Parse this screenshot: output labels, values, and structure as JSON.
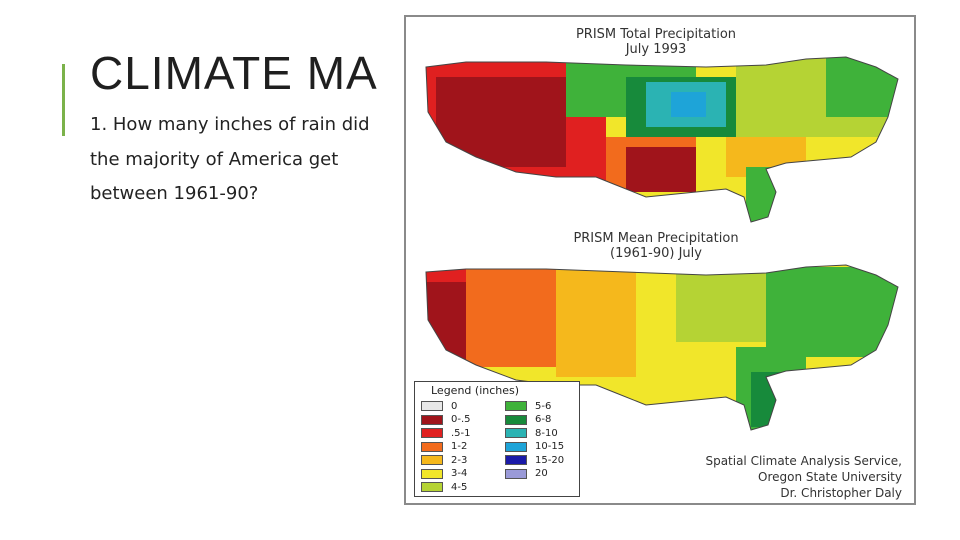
{
  "slide": {
    "title": "CLIMATE MA",
    "question": "1. How many inches of rain did the majority of America get between 1961-90?"
  },
  "maps": [
    {
      "title_line1": "PRISM Total Precipitation",
      "title_line2": "July 1993"
    },
    {
      "title_line1": "PRISM Mean Precipitation",
      "title_line2": "(1961-90) July"
    }
  ],
  "legend": {
    "title": "Legend (inches)",
    "items": [
      {
        "label": "0",
        "color": "#e8e8e8"
      },
      {
        "label": "0-.5",
        "color": "#a0141b"
      },
      {
        "label": ".5-1",
        "color": "#e02020"
      },
      {
        "label": "1-2",
        "color": "#f26b1d"
      },
      {
        "label": "2-3",
        "color": "#f5b81c"
      },
      {
        "label": "3-4",
        "color": "#f1e62a"
      },
      {
        "label": "4-5",
        "color": "#b5d334"
      },
      {
        "label": "5-6",
        "color": "#3fb23a"
      },
      {
        "label": "6-8",
        "color": "#178a3b"
      },
      {
        "label": "8-10",
        "color": "#2bb3b3"
      },
      {
        "label": "10-15",
        "color": "#1ea4d8"
      },
      {
        "label": "15-20",
        "color": "#1a1aa8"
      },
      {
        "label": "20",
        "color": "#9a9ad8"
      }
    ]
  },
  "credit": {
    "line1": "Spatial Climate Analysis Service,",
    "line2": "Oregon State University",
    "line3": "Dr. Christopher Daly"
  }
}
